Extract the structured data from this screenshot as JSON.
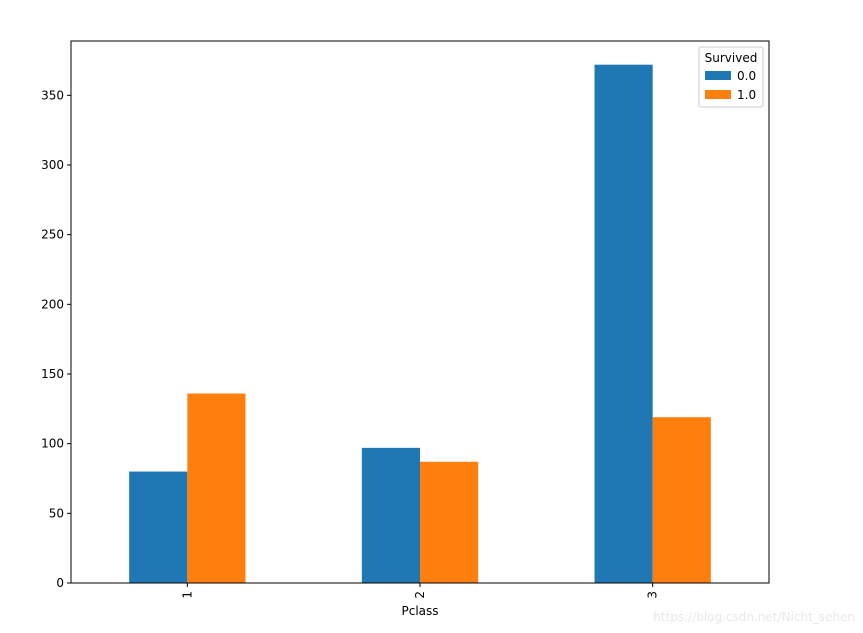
{
  "chart_data": {
    "type": "bar",
    "xlabel": "Pclass",
    "ylabel": "",
    "categories": [
      "1",
      "2",
      "3"
    ],
    "series": [
      {
        "name": "0.0",
        "values": [
          80,
          97,
          372
        ]
      },
      {
        "name": "1.0",
        "values": [
          136,
          87,
          119
        ]
      }
    ],
    "ylim": [
      0,
      389
    ],
    "yticks": [
      0,
      50,
      100,
      150,
      200,
      250,
      300,
      350
    ],
    "legend": {
      "title": "Survived",
      "placement": "top-right"
    },
    "grid": false,
    "colors": {
      "series_0": "#1f77b4",
      "series_1": "#ff7f0e"
    }
  },
  "watermark": "https://blog.csdn.net/Nicht_sehen"
}
